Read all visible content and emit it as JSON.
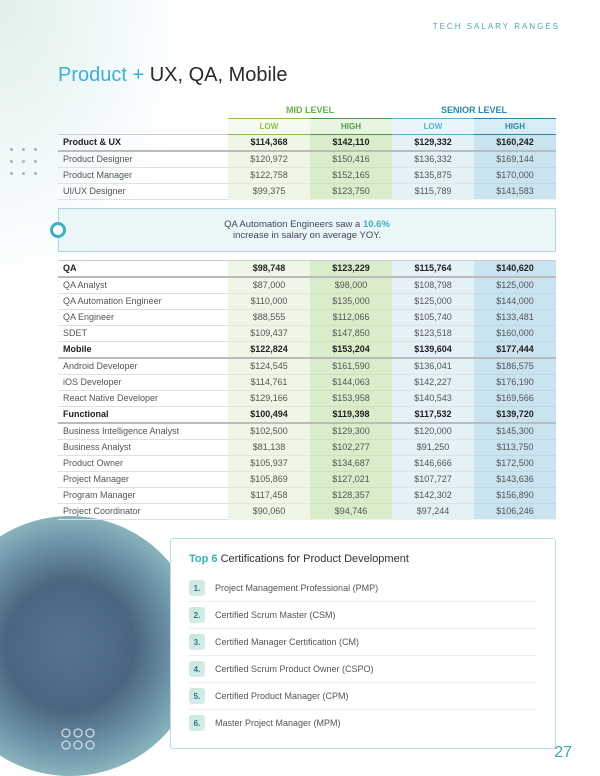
{
  "header_label": "TECH SALARY RANGES",
  "title_accent": "Product + ",
  "title_rest": "UX, QA, Mobile",
  "levels": {
    "mid": "MID LEVEL",
    "senior": "SENIOR LEVEL"
  },
  "tiers": {
    "low": "LOW",
    "high": "HIGH"
  },
  "colors": {
    "accent_blue": "#3bb0e0",
    "mid_low_bg": "#eef7e6",
    "mid_high_bg": "#d9edca",
    "sen_low_bg": "#e4f1f7",
    "sen_high_bg": "#c9e3ef"
  },
  "callout_pre": "QA Automation Engineers saw a ",
  "callout_hl": "10.6%",
  "callout_post": " increase in salary on average YOY.",
  "sections": [
    {
      "category": "Product & UX",
      "cat_vals": [
        "$114,368",
        "$142,110",
        "$129,332",
        "$160,242"
      ],
      "rows": [
        {
          "label": "Product Designer",
          "vals": [
            "$120,972",
            "$150,416",
            "$136,332",
            "$169,144"
          ]
        },
        {
          "label": "Product Manager",
          "vals": [
            "$122,758",
            "$152,165",
            "$135,875",
            "$170,000"
          ]
        },
        {
          "label": "UI/UX Designer",
          "vals": [
            "$99,375",
            "$123,750",
            "$115,789",
            "$141,583"
          ]
        }
      ]
    },
    {
      "category": "QA",
      "cat_vals": [
        "$98,748",
        "$123,229",
        "$115,764",
        "$140,620"
      ],
      "rows": [
        {
          "label": "QA Analyst",
          "vals": [
            "$87,000",
            "$98,000",
            "$108,798",
            "$125,000"
          ]
        },
        {
          "label": "QA Automation Engineer",
          "vals": [
            "$110,000",
            "$135,000",
            "$125,000",
            "$144,000"
          ]
        },
        {
          "label": "QA Engineer",
          "vals": [
            "$88,555",
            "$112,066",
            "$105,740",
            "$133,481"
          ]
        },
        {
          "label": "SDET",
          "vals": [
            "$109,437",
            "$147,850",
            "$123,518",
            "$160,000"
          ]
        }
      ]
    },
    {
      "category": "Mobile",
      "cat_vals": [
        "$122,824",
        "$153,204",
        "$139,604",
        "$177,444"
      ],
      "rows": [
        {
          "label": "Android Developer",
          "vals": [
            "$124,545",
            "$161,590",
            "$136,041",
            "$186,575"
          ]
        },
        {
          "label": "iOS Developer",
          "vals": [
            "$114,761",
            "$144,063",
            "$142,227",
            "$176,190"
          ]
        },
        {
          "label": "React Native Developer",
          "vals": [
            "$129,166",
            "$153,958",
            "$140,543",
            "$169,566"
          ]
        }
      ]
    },
    {
      "category": "Functional",
      "cat_vals": [
        "$100,494",
        "$119,398",
        "$117,532",
        "$139,720"
      ],
      "rows": [
        {
          "label": "Business Intelligence Analyst",
          "vals": [
            "$102,500",
            "$129,300",
            "$120,000",
            "$145,300"
          ]
        },
        {
          "label": "Business Analyst",
          "vals": [
            "$81,138",
            "$102,277",
            "$91,250",
            "$113,750"
          ]
        },
        {
          "label": "Product Owner",
          "vals": [
            "$105,937",
            "$134,687",
            "$146,666",
            "$172,500"
          ]
        },
        {
          "label": "Project Manager",
          "vals": [
            "$105,869",
            "$127,021",
            "$107,727",
            "$143,636"
          ]
        },
        {
          "label": "Program Manager",
          "vals": [
            "$117,458",
            "$128,357",
            "$142,302",
            "$156,890"
          ]
        },
        {
          "label": "Project Coordinator",
          "vals": [
            "$90,060",
            "$94,746",
            "$97,244",
            "$106,246"
          ]
        }
      ]
    }
  ],
  "cert_title_accent": "Top 6 ",
  "cert_title_rest": "Certifications for Product Development",
  "certs": [
    "Project Management Professional (PMP)",
    "Certified Scrum Master (CSM)",
    "Certified Manager Certification (CM)",
    "Certified Scrum Product Owner (CSPO)",
    "Certified Product Manager (CPM)",
    "Master Project Manager (MPM)"
  ],
  "page_number": "27"
}
